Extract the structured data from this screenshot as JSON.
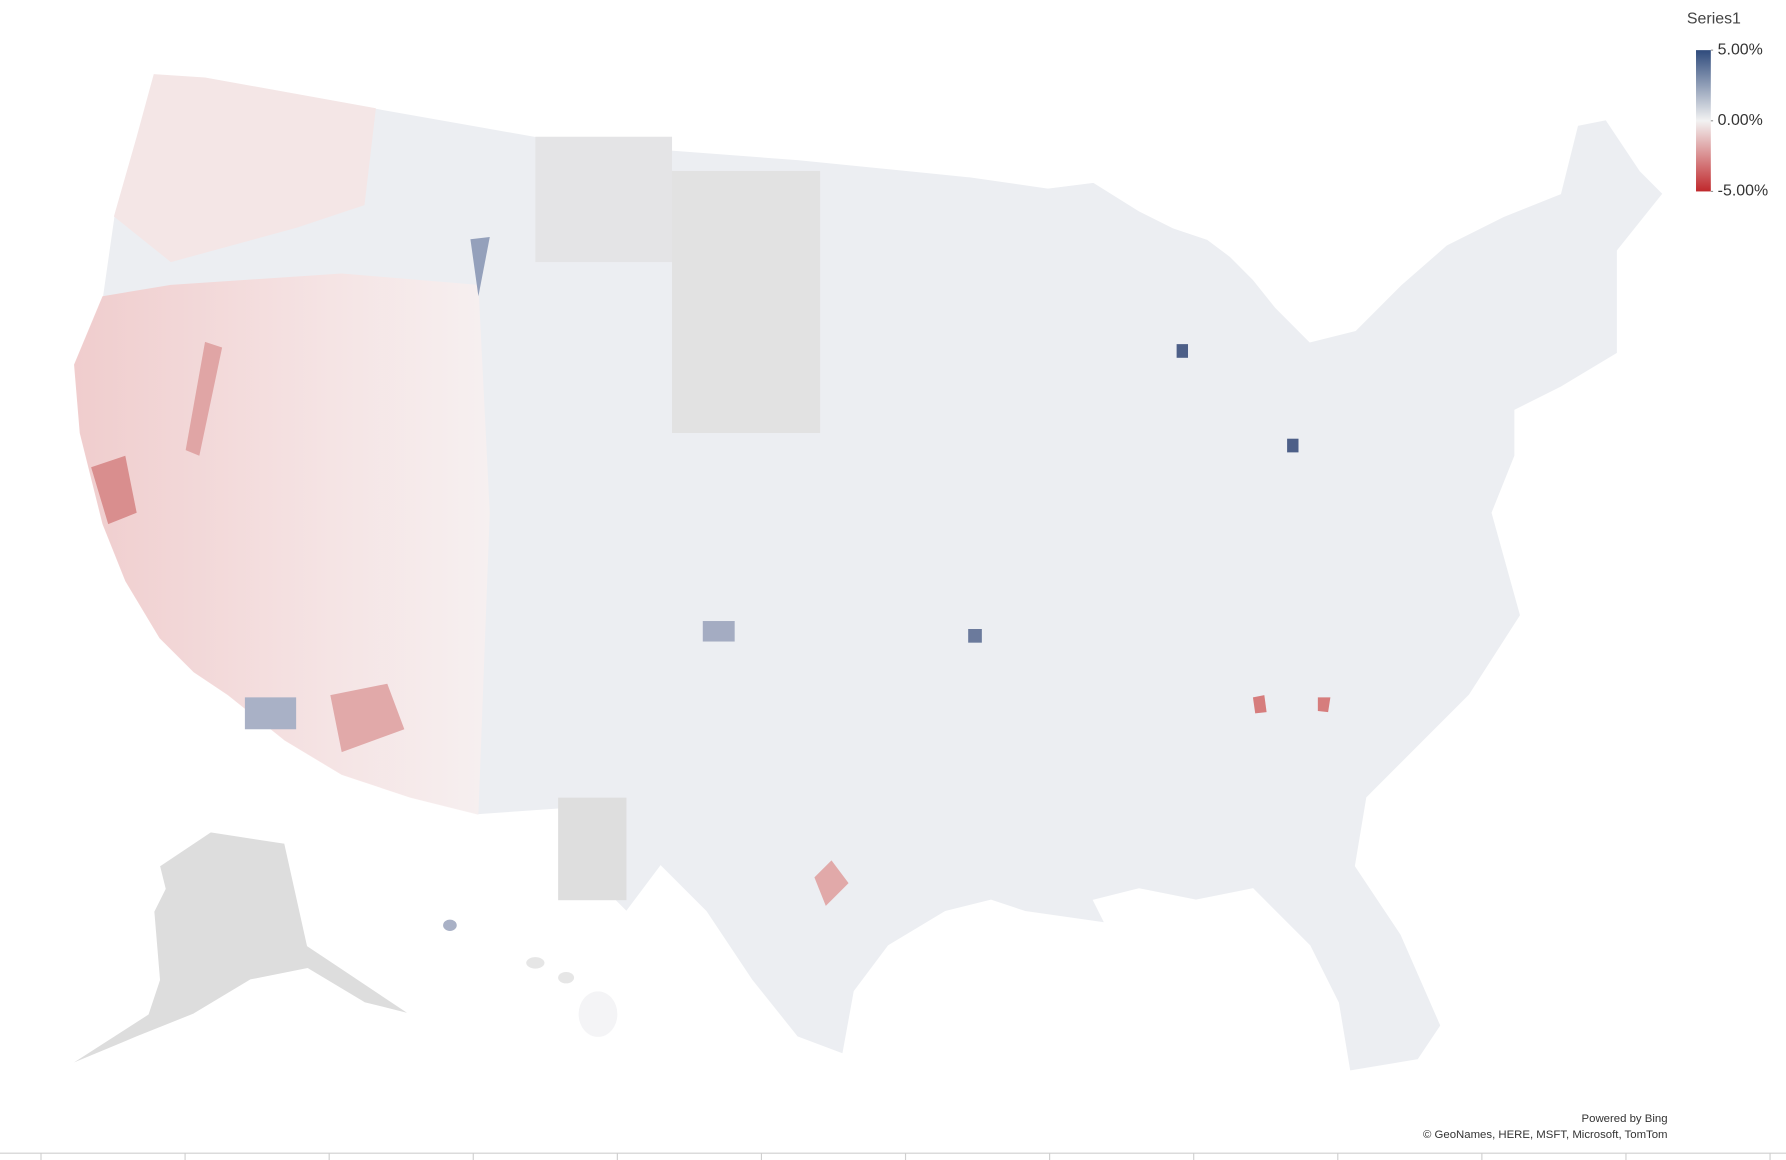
{
  "chart_data": {
    "type": "choropleth",
    "legend_title": "Series1",
    "color_scale": {
      "min_color": "#c0282c",
      "mid_color": "#f2f2f2",
      "max_color": "#2f4b7c"
    },
    "clim": [
      -5,
      5
    ],
    "cticks": [
      {
        "value": 5,
        "label": "5.00%"
      },
      {
        "value": 0,
        "label": "0.00%"
      },
      {
        "value": -5,
        "label": "-5.00%"
      }
    ],
    "attribution": [
      "Powered by Bing",
      "© GeoNames, HERE, MSFT, Microsoft, TomTom"
    ]
  }
}
